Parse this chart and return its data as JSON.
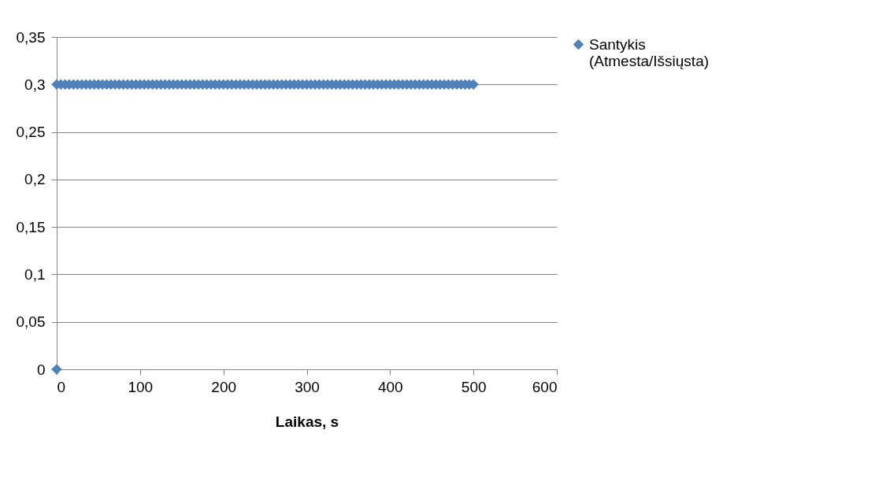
{
  "chart_data": {
    "type": "scatter",
    "xlabel": "Laikas, s",
    "series": [
      {
        "name": "Santykis (Atmesta/Išsiųsta)",
        "color": "#4f81bd",
        "x": [
          0,
          0,
          5,
          10,
          15,
          20,
          25,
          30,
          35,
          40,
          45,
          50,
          55,
          60,
          65,
          70,
          75,
          80,
          85,
          90,
          95,
          100,
          105,
          110,
          115,
          120,
          125,
          130,
          135,
          140,
          145,
          150,
          155,
          160,
          165,
          170,
          175,
          180,
          185,
          190,
          195,
          200,
          205,
          210,
          215,
          220,
          225,
          230,
          235,
          240,
          245,
          250,
          255,
          260,
          265,
          270,
          275,
          280,
          285,
          290,
          295,
          300,
          305,
          310,
          315,
          320,
          325,
          330,
          335,
          340,
          345,
          350,
          355,
          360,
          365,
          370,
          375,
          380,
          385,
          390,
          395,
          400,
          405,
          410,
          415,
          420,
          425,
          430,
          435,
          440,
          445,
          450,
          455,
          460,
          465,
          470,
          475,
          480,
          485,
          490,
          495,
          500
        ],
        "values": [
          0,
          0.3,
          0.3,
          0.3,
          0.3,
          0.3,
          0.3,
          0.3,
          0.3,
          0.3,
          0.3,
          0.3,
          0.3,
          0.3,
          0.3,
          0.3,
          0.3,
          0.3,
          0.3,
          0.3,
          0.3,
          0.3,
          0.3,
          0.3,
          0.3,
          0.3,
          0.3,
          0.3,
          0.3,
          0.3,
          0.3,
          0.3,
          0.3,
          0.3,
          0.3,
          0.3,
          0.3,
          0.3,
          0.3,
          0.3,
          0.3,
          0.3,
          0.3,
          0.3,
          0.3,
          0.3,
          0.3,
          0.3,
          0.3,
          0.3,
          0.3,
          0.3,
          0.3,
          0.3,
          0.3,
          0.3,
          0.3,
          0.3,
          0.3,
          0.3,
          0.3,
          0.3,
          0.3,
          0.3,
          0.3,
          0.3,
          0.3,
          0.3,
          0.3,
          0.3,
          0.3,
          0.3,
          0.3,
          0.3,
          0.3,
          0.3,
          0.3,
          0.3,
          0.3,
          0.3,
          0.3,
          0.3,
          0.3,
          0.3,
          0.3,
          0.3,
          0.3,
          0.3,
          0.3,
          0.3,
          0.3,
          0.3,
          0.3,
          0.3,
          0.3,
          0.3,
          0.3,
          0.3,
          0.3,
          0.3,
          0.3,
          0.3
        ]
      }
    ],
    "xlim": [
      0,
      600
    ],
    "xticks": [
      0,
      100,
      200,
      300,
      400,
      500,
      600
    ],
    "ylim": [
      0,
      0.35
    ],
    "yticks": [
      0,
      {
        "value": 0.05,
        "label": "0,05"
      },
      {
        "value": 0.1,
        "label": "0,1"
      },
      {
        "value": 0.15,
        "label": "0,15"
      },
      {
        "value": 0.2,
        "label": "0,2"
      },
      {
        "value": 0.25,
        "label": "0,25"
      },
      {
        "value": 0.3,
        "label": "0,3"
      },
      {
        "value": 0.35,
        "label": "0,35"
      }
    ],
    "grid": "y",
    "legend": "right",
    "marker": "diamond"
  }
}
